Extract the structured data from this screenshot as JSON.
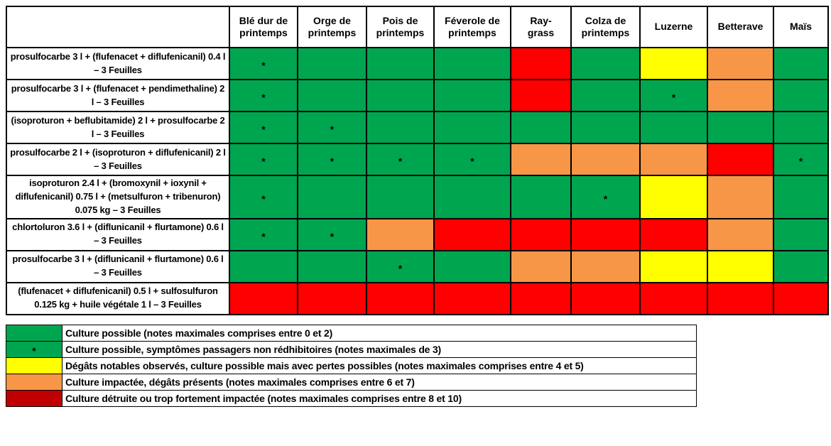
{
  "chart_data": {
    "type": "heatmap",
    "title": "",
    "columns": [
      "Blé dur de\nprintemps",
      "Orge de\nprintemps",
      "Pois de\nprintemps",
      "Féverole de\nprintemps",
      "Ray-\ngrass",
      "Colza de\nprintemps",
      "Luzerne",
      "Betterave",
      "Maïs"
    ],
    "rows": [
      {
        "label": "prosulfocarbe 3 l + (flufenacet + diflufenicanil) 0.4 l – 3 Feuilles",
        "cells": [
          "GS",
          "G",
          "G",
          "G",
          "R",
          "G",
          "Y",
          "O",
          "G"
        ]
      },
      {
        "label": "prosulfocarbe 3 l + (flufenacet + pendimethaline) 2 l – 3 Feuilles",
        "cells": [
          "GS",
          "G",
          "G",
          "G",
          "R",
          "G",
          "GS",
          "O",
          "G"
        ]
      },
      {
        "label": "(isoproturon + beflubitamide) 2 l + prosulfocarbe 2 l – 3 Feuilles",
        "cells": [
          "GS",
          "GS",
          "G",
          "G",
          "G",
          "G",
          "G",
          "G",
          "G"
        ]
      },
      {
        "label": "prosulfocarbe 2 l + (isoproturon + diflufenicanil) 2 l – 3 Feuilles",
        "cells": [
          "GS",
          "GS",
          "GS",
          "GS",
          "O",
          "O",
          "O",
          "R",
          "GS"
        ]
      },
      {
        "label": "isoproturon 2.4 l + (bromoxynil + ioxynil + diflufenicanil) 0.75 l + (metsulfuron + tribenuron) 0.075 kg – 3 Feuilles",
        "cells": [
          "GS",
          "G",
          "G",
          "G",
          "G",
          "GS",
          "Y",
          "O",
          "G"
        ]
      },
      {
        "label": "chlortoluron 3.6 l + (diflunicanil + flurtamone) 0.6 l  – 3 Feuilles",
        "cells": [
          "GS",
          "GS",
          "O",
          "R",
          "R",
          "R",
          "R",
          "O",
          "G"
        ]
      },
      {
        "label": "prosulfocarbe 3 l + (diflunicanil + flurtamone) 0.6 l – 3 Feuilles",
        "cells": [
          "G",
          "G",
          "GS",
          "G",
          "O",
          "O",
          "Y",
          "Y",
          "G"
        ]
      },
      {
        "label": "(flufenacet + diflufenicanil) 0.5 l + sulfosulfuron 0.125 kg + huile végétale 1 l – 3 Feuilles",
        "cells": [
          "R",
          "R",
          "R",
          "R",
          "R",
          "R",
          "R",
          "R",
          "R"
        ]
      }
    ],
    "cell_codes": {
      "G": "green — culture possible",
      "GS": "green with star — culture possible, symptômes passagers",
      "Y": "yellow — dégâts notables",
      "O": "orange — culture impactée",
      "R": "red — culture détruite"
    },
    "star_symbol": "*",
    "colors": {
      "green": "#00A550",
      "yellow": "#FFFF00",
      "orange": "#F79646",
      "red": "#FF0000",
      "darkred": "#C00000"
    },
    "legend": [
      {
        "swatch": "green",
        "star": false,
        "text": "Culture possible (notes maximales comprises entre 0 et 2)"
      },
      {
        "swatch": "green",
        "star": true,
        "text": "Culture possible, symptômes passagers non rédhibitoires (notes maximales de 3)"
      },
      {
        "swatch": "yellow",
        "star": false,
        "text": "Dégâts notables observés, culture possible mais avec pertes possibles (notes maximales comprises entre 4 et 5)"
      },
      {
        "swatch": "orange",
        "star": false,
        "text": "Culture impactée, dégâts présents (notes maximales comprises entre 6 et 7)"
      },
      {
        "swatch": "darkred",
        "star": false,
        "text": "Culture détruite ou trop fortement impactée (notes maximales comprises entre 8 et 10)"
      }
    ]
  }
}
